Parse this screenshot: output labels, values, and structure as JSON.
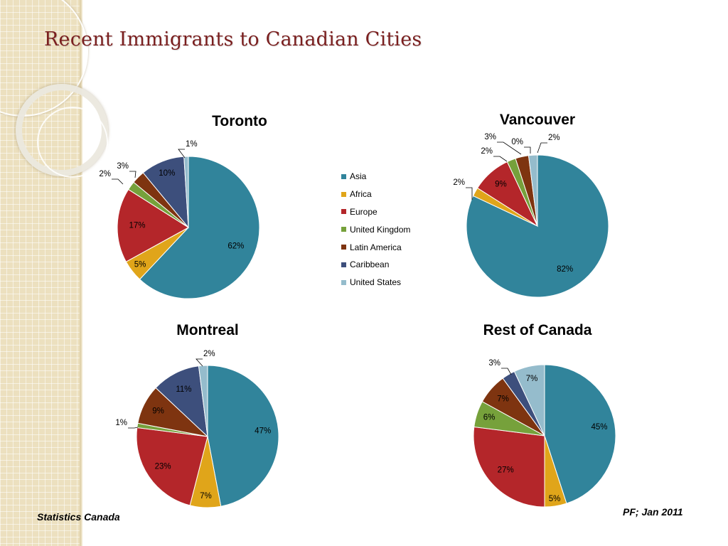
{
  "slide": {
    "title": "Recent Immigrants to Canadian Cities",
    "source": "Statistics Canada",
    "author": "PF;  Jan  2011"
  },
  "colors": {
    "Asia": "#31849b",
    "Africa": "#e0a51a",
    "Europe": "#b4262a",
    "United Kingdom": "#76a13b",
    "Latin America": "#7e3410",
    "Caribbean": "#3d4f7c",
    "United States": "#95bccc"
  },
  "legend": [
    "Asia",
    "Africa",
    "Europe",
    "United Kingdom",
    "Latin America",
    "Caribbean",
    "United States"
  ],
  "chart_data": [
    {
      "type": "pie",
      "title": "Toronto",
      "categories": [
        "Asia",
        "Africa",
        "Europe",
        "United Kingdom",
        "Latin America",
        "Caribbean",
        "United States"
      ],
      "values": [
        62,
        5,
        17,
        2,
        3,
        10,
        1
      ],
      "labels": [
        "62%",
        "5%",
        "17%",
        "2%",
        "3%",
        "10%",
        "1%"
      ]
    },
    {
      "type": "pie",
      "title": "Vancouver",
      "categories": [
        "Asia",
        "Africa",
        "Europe",
        "United Kingdom",
        "Latin America",
        "Caribbean",
        "United States"
      ],
      "values": [
        82,
        2,
        9,
        2,
        3,
        0,
        2
      ],
      "labels": [
        "82%",
        "2%",
        "9%",
        "2%",
        "3%",
        "0%",
        "2%"
      ]
    },
    {
      "type": "pie",
      "title": "Montreal",
      "categories": [
        "Asia",
        "Africa",
        "Europe",
        "United Kingdom",
        "Latin America",
        "Caribbean",
        "United States"
      ],
      "values": [
        47,
        7,
        23,
        1,
        9,
        11,
        2
      ],
      "labels": [
        "47%",
        "7%",
        "23%",
        "1%",
        "9%",
        "11%",
        "2%"
      ]
    },
    {
      "type": "pie",
      "title": "Rest of Canada",
      "categories": [
        "Asia",
        "Africa",
        "Europe",
        "United Kingdom",
        "Latin America",
        "Caribbean",
        "United States"
      ],
      "values": [
        45,
        5,
        27,
        6,
        7,
        3,
        7
      ],
      "labels": [
        "45%",
        "5%",
        "27%",
        "6%",
        "7%",
        "3%",
        "7%"
      ]
    }
  ]
}
